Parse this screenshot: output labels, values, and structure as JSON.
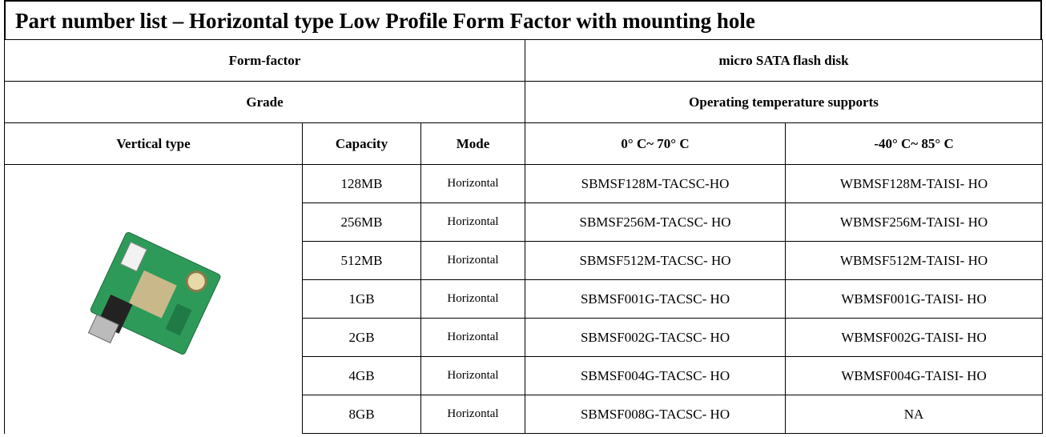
{
  "title": "Part number list – Horizontal type Low Profile Form Factor with mounting hole",
  "table": {
    "top_rows": [
      [
        "Form-factor",
        "micro SATA flash disk"
      ],
      [
        "Grade",
        "Operating temperature supports"
      ]
    ],
    "header": [
      "Vertical type",
      "Capacity",
      "Mode",
      "0° C~ 70° C",
      "-40° C~ 85° C"
    ],
    "rows": [
      [
        "128MB",
        "Horizontal",
        "SBMSF128M-TACSC-HO",
        "WBMSF128M-TAISI- HO"
      ],
      [
        "256MB",
        "Horizontal",
        "SBMSF256M-TACSC- HO",
        "WBMSF256M-TAISI- HO"
      ],
      [
        "512MB",
        "Horizontal",
        "SBMSF512M-TACSC- HO",
        "WBMSF512M-TAISI- HO"
      ],
      [
        "1GB",
        "Horizontal",
        "SBMSF001G-TACSC- HO",
        "WBMSF001G-TAISI- HO"
      ],
      [
        "2GB",
        "Horizontal",
        "SBMSF002G-TACSC- HO",
        "WBMSF002G-TAISI- HO"
      ],
      [
        "4GB",
        "Horizontal",
        "SBMSF004G-TACSC- HO",
        "WBMSF004G-TAISI- HO"
      ],
      [
        "8GB",
        "Horizontal",
        "SBMSF008G-TACSC- HO",
        "NA"
      ]
    ]
  }
}
